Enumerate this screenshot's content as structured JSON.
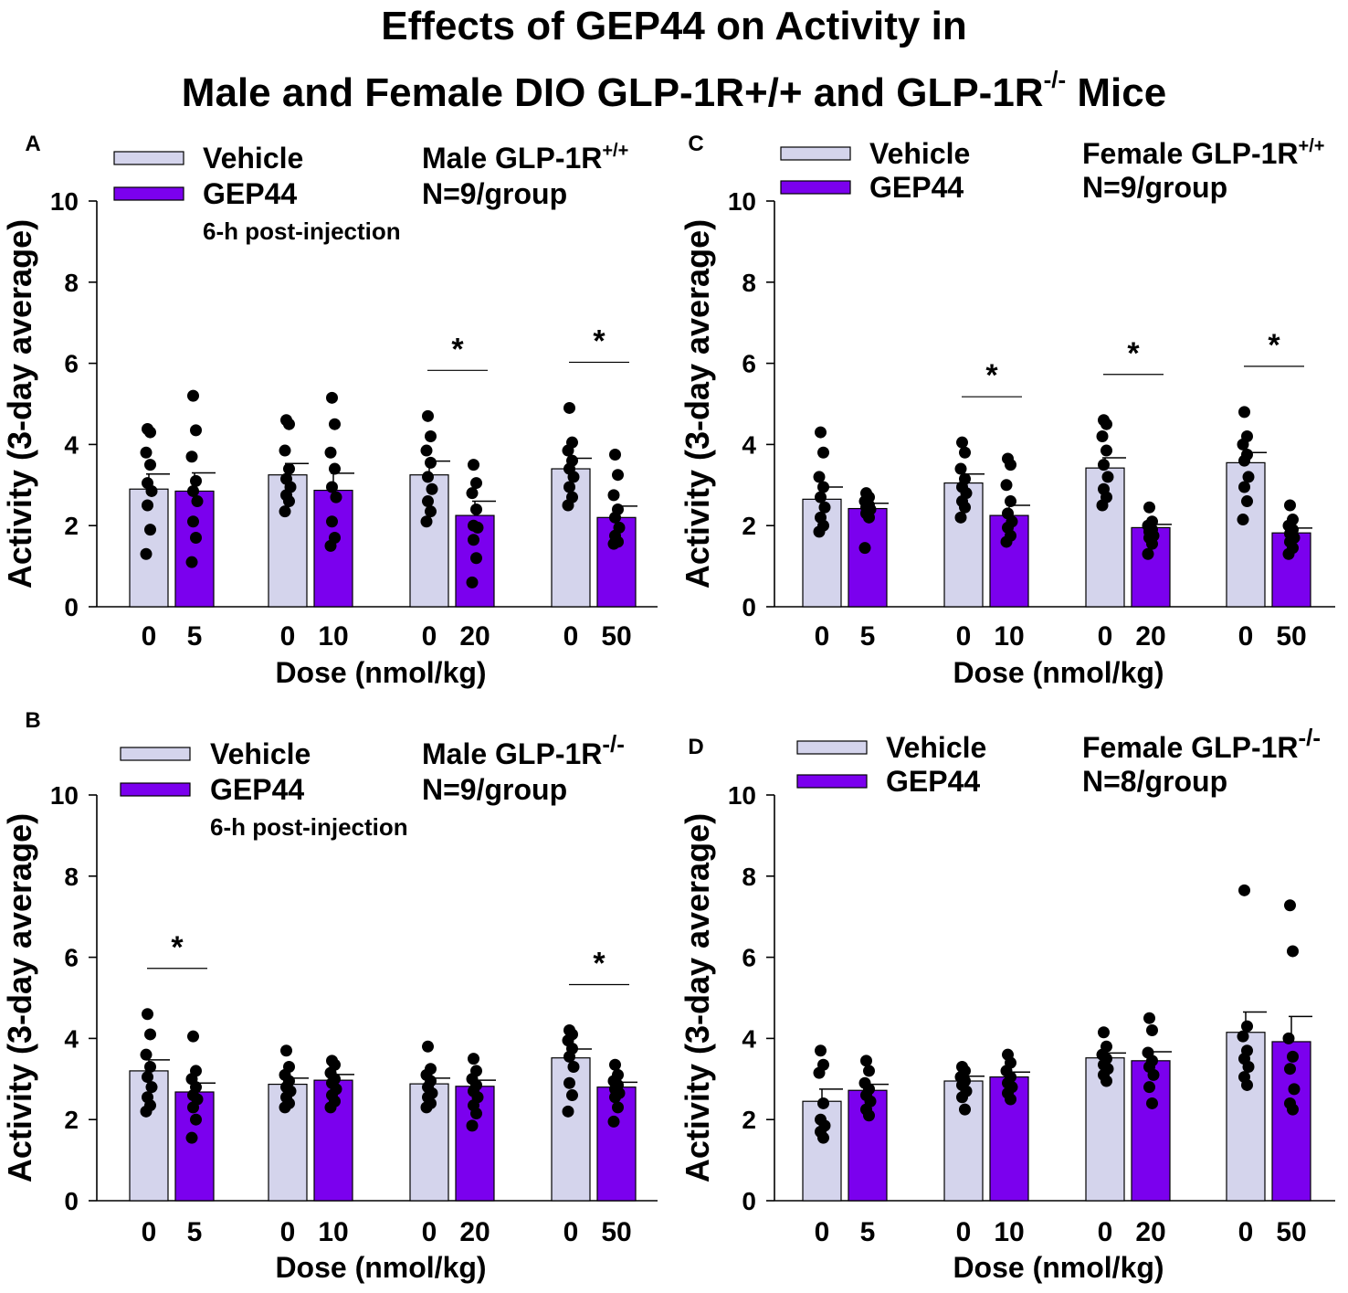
{
  "title": {
    "line1": "Effects of GEP44 on Activity in",
    "line2_main": "Male and Female DIO GLP-1R+/+ and GLP-1R",
    "line2_sup": "-/-",
    "line2_end": " Mice"
  },
  "colors": {
    "vehicle": "#d4d4ec",
    "gep44": "#7b00ee",
    "dots": "#000000",
    "axis": "#000000"
  },
  "chart_data": [
    {
      "panel": "A",
      "type": "bar",
      "group_label": "Male GLP-1R",
      "group_sup": "+/+",
      "n_label": "N=9/group",
      "note": "6-h post-injection",
      "legend": [
        "Vehicle",
        "GEP44"
      ],
      "xlabel": "Dose (nmol/kg)",
      "ylabel": "Activity (3-day average)",
      "ylim": [
        0,
        10
      ],
      "yticks": [
        0,
        2,
        4,
        6,
        8,
        10
      ],
      "categories": [
        [
          "0",
          "5"
        ],
        [
          "0",
          "10"
        ],
        [
          "0",
          "20"
        ],
        [
          "0",
          "50"
        ]
      ],
      "series": [
        {
          "name": "Vehicle",
          "values": [
            2.9,
            3.25,
            3.25,
            3.4
          ],
          "sem": [
            0.37,
            0.28,
            0.34,
            0.26
          ]
        },
        {
          "name": "GEP44",
          "values": [
            2.85,
            2.87,
            2.25,
            2.2
          ],
          "sem": [
            0.45,
            0.42,
            0.35,
            0.28
          ]
        }
      ],
      "points": [
        [
          [
            4.38,
            4.3,
            3.8,
            3.5,
            3.05,
            2.85,
            2.5,
            1.9,
            1.3
          ],
          [
            5.2,
            4.35,
            3.7,
            3.1,
            2.85,
            2.6,
            2.1,
            1.7,
            1.1
          ]
        ],
        [
          [
            4.6,
            4.5,
            3.85,
            3.4,
            3.15,
            2.95,
            2.75,
            2.6,
            2.35
          ],
          [
            5.15,
            4.5,
            3.8,
            3.4,
            2.95,
            2.7,
            2.1,
            1.7,
            1.5
          ]
        ],
        [
          [
            4.7,
            4.2,
            3.85,
            3.55,
            3.2,
            2.9,
            2.6,
            2.35,
            2.1
          ],
          [
            3.5,
            3.05,
            2.8,
            2.4,
            2.0,
            1.95,
            1.65,
            1.2,
            0.6
          ]
        ],
        [
          [
            4.9,
            4.05,
            3.85,
            3.6,
            3.4,
            3.2,
            2.95,
            2.7,
            2.5
          ],
          [
            3.75,
            3.25,
            2.75,
            2.4,
            2.2,
            1.95,
            1.75,
            1.6,
            1.55
          ]
        ]
      ],
      "significant": [
        false,
        false,
        true,
        true
      ],
      "sig_mark": "*"
    },
    {
      "panel": "C",
      "type": "bar",
      "group_label": "Female GLP-1R",
      "group_sup": "+/+",
      "n_label": "N=9/group",
      "note": "",
      "legend": [
        "Vehicle",
        "GEP44"
      ],
      "xlabel": "Dose (nmol/kg)",
      "ylabel": "Activity (3-day average)",
      "ylim": [
        0,
        10
      ],
      "yticks": [
        0,
        2,
        4,
        6,
        8,
        10
      ],
      "categories": [
        [
          "0",
          "5"
        ],
        [
          "0",
          "10"
        ],
        [
          "0",
          "20"
        ],
        [
          "0",
          "50"
        ]
      ],
      "series": [
        {
          "name": "Vehicle",
          "values": [
            2.65,
            3.05,
            3.42,
            3.55
          ],
          "sem": [
            0.3,
            0.22,
            0.25,
            0.25
          ]
        },
        {
          "name": "GEP44",
          "values": [
            2.42,
            2.25,
            1.95,
            1.82
          ],
          "sem": [
            0.13,
            0.25,
            0.08,
            0.12
          ]
        }
      ],
      "points": [
        [
          [
            4.3,
            3.8,
            3.2,
            2.95,
            2.7,
            2.45,
            2.2,
            2.0,
            1.85
          ],
          [
            2.8,
            2.7,
            2.6,
            2.5,
            2.45,
            2.4,
            2.3,
            2.2,
            1.45
          ]
        ],
        [
          [
            4.05,
            3.8,
            3.4,
            3.15,
            2.95,
            2.8,
            2.6,
            2.45,
            2.2
          ],
          [
            3.65,
            3.5,
            3.0,
            2.6,
            2.3,
            2.1,
            1.95,
            1.75,
            1.6
          ]
        ],
        [
          [
            4.6,
            4.5,
            4.2,
            3.85,
            3.5,
            3.2,
            2.9,
            2.7,
            2.5
          ],
          [
            2.45,
            2.1,
            2.0,
            1.9,
            1.85,
            1.75,
            1.7,
            1.55,
            1.3
          ]
        ],
        [
          [
            4.8,
            4.2,
            4.0,
            3.75,
            3.6,
            3.2,
            2.95,
            2.6,
            2.15
          ],
          [
            2.5,
            2.15,
            2.0,
            1.9,
            1.8,
            1.7,
            1.6,
            1.45,
            1.3
          ]
        ]
      ],
      "significant": [
        false,
        true,
        true,
        true
      ],
      "sig_mark": "*"
    },
    {
      "panel": "B",
      "type": "bar",
      "group_label": "Male GLP-1R",
      "group_sup": "-/-",
      "n_label": "N=9/group",
      "note": "6-h post-injection",
      "legend": [
        "Vehicle",
        "GEP44"
      ],
      "xlabel": "Dose (nmol/kg)",
      "ylabel": "Activity (3-day average)",
      "ylim": [
        0,
        10
      ],
      "yticks": [
        0,
        2,
        4,
        6,
        8,
        10
      ],
      "categories": [
        [
          "0",
          "5"
        ],
        [
          "0",
          "10"
        ],
        [
          "0",
          "20"
        ],
        [
          "0",
          "50"
        ]
      ],
      "series": [
        {
          "name": "Vehicle",
          "values": [
            3.2,
            2.87,
            2.88,
            3.52
          ],
          "sem": [
            0.27,
            0.15,
            0.14,
            0.22
          ]
        },
        {
          "name": "GEP44",
          "values": [
            2.68,
            2.97,
            2.82,
            2.8
          ],
          "sem": [
            0.22,
            0.14,
            0.15,
            0.12
          ]
        }
      ],
      "points": [
        [
          [
            4.6,
            4.1,
            3.6,
            3.3,
            3.05,
            2.8,
            2.55,
            2.35,
            2.2
          ],
          [
            4.05,
            3.2,
            3.0,
            2.8,
            2.6,
            2.5,
            2.3,
            2.0,
            1.55
          ]
        ],
        [
          [
            3.7,
            3.3,
            3.1,
            2.95,
            2.8,
            2.7,
            2.55,
            2.4,
            2.3
          ],
          [
            3.45,
            3.35,
            3.15,
            3.0,
            2.9,
            2.75,
            2.6,
            2.45,
            2.3
          ]
        ],
        [
          [
            3.8,
            3.25,
            3.1,
            2.95,
            2.8,
            2.65,
            2.55,
            2.4,
            2.3
          ],
          [
            3.5,
            3.2,
            3.0,
            2.85,
            2.7,
            2.55,
            2.35,
            2.15,
            1.85
          ]
        ],
        [
          [
            4.2,
            4.1,
            3.95,
            3.75,
            3.55,
            3.3,
            2.9,
            2.6,
            2.2
          ],
          [
            3.35,
            3.1,
            2.95,
            2.85,
            2.75,
            2.65,
            2.55,
            2.3,
            1.95
          ]
        ]
      ],
      "significant": [
        true,
        false,
        false,
        true
      ],
      "sig_mark": "*"
    },
    {
      "panel": "D",
      "type": "bar",
      "group_label": "Female GLP-1R",
      "group_sup": "-/-",
      "n_label": "N=8/group",
      "note": "",
      "legend": [
        "Vehicle",
        "GEP44"
      ],
      "xlabel": "Dose (nmol/kg)",
      "ylabel": "Activity (3-day average)",
      "ylim": [
        0,
        10
      ],
      "yticks": [
        0,
        2,
        4,
        6,
        8,
        10
      ],
      "categories": [
        [
          "0",
          "5"
        ],
        [
          "0",
          "10"
        ],
        [
          "0",
          "20"
        ],
        [
          "0",
          "50"
        ]
      ],
      "series": [
        {
          "name": "Vehicle",
          "values": [
            2.45,
            2.95,
            3.52,
            4.15
          ],
          "sem": [
            0.3,
            0.12,
            0.12,
            0.5
          ]
        },
        {
          "name": "GEP44",
          "values": [
            2.72,
            3.05,
            3.45,
            3.92
          ],
          "sem": [
            0.15,
            0.12,
            0.22,
            0.62
          ]
        }
      ],
      "points": [
        [
          [
            3.7,
            3.35,
            3.15,
            2.4,
            2.0,
            1.85,
            1.7,
            1.55
          ],
          [
            3.45,
            3.2,
            2.9,
            2.75,
            2.6,
            2.45,
            2.25,
            2.1
          ]
        ],
        [
          [
            3.3,
            3.2,
            3.05,
            2.95,
            2.85,
            2.7,
            2.55,
            2.25
          ],
          [
            3.6,
            3.4,
            3.2,
            3.05,
            2.9,
            2.8,
            2.65,
            2.5
          ]
        ],
        [
          [
            4.15,
            3.8,
            3.6,
            3.5,
            3.35,
            3.25,
            3.1,
            2.95
          ],
          [
            4.5,
            4.2,
            3.65,
            3.45,
            3.3,
            3.1,
            2.8,
            2.4
          ]
        ],
        [
          [
            7.65,
            4.3,
            4.05,
            3.7,
            3.5,
            3.3,
            3.05,
            2.85
          ],
          [
            7.28,
            6.15,
            4.0,
            3.55,
            3.25,
            2.75,
            2.4,
            2.25
          ]
        ]
      ],
      "significant": [
        false,
        false,
        false,
        false
      ],
      "sig_mark": "*"
    }
  ]
}
